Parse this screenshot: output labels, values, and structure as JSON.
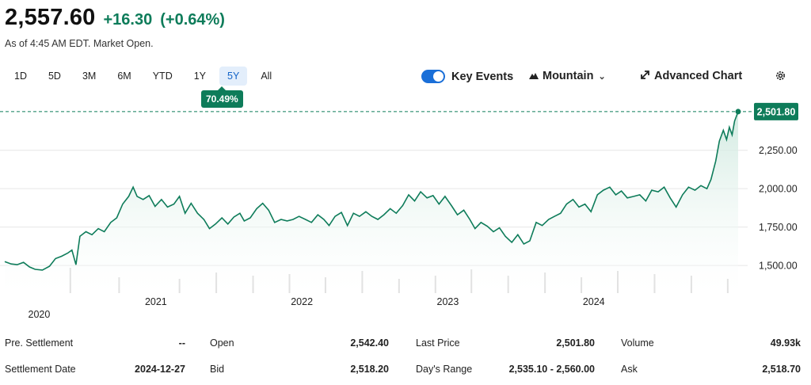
{
  "quote": {
    "price": "2,557.60",
    "change": "+16.30",
    "change_pct": "(+0.64%)",
    "as_of": "As of 4:45 AM EDT. Market Open."
  },
  "ranges": {
    "items": [
      "1D",
      "5D",
      "3M",
      "6M",
      "YTD",
      "1Y",
      "5Y",
      "All"
    ],
    "active": "5Y",
    "period_change": "70.49%"
  },
  "controls": {
    "key_events": "Key Events",
    "mountain": "Mountain",
    "advanced_chart": "Advanced Chart"
  },
  "colors": {
    "line": "#0e7c5a",
    "area_top": "#cfe9df",
    "accent_blue": "#1a6fd8",
    "grid": "#e6e6e6"
  },
  "chart_data": {
    "type": "area",
    "title": "",
    "xlabel": "",
    "ylabel": "",
    "ylim": [
      1320,
      2620
    ],
    "yticks": [
      1500,
      1750,
      2000,
      2250
    ],
    "ytick_labels": [
      "1,500.00",
      "1,750.00",
      "2,000.00",
      "2,250.00"
    ],
    "x_start": "2019-12-20",
    "x_end": "2024-12-27",
    "x_year_labels": [
      {
        "label": "2020",
        "date": "2020-03-15",
        "row": 2
      },
      {
        "label": "2021",
        "date": "2021-01-01",
        "row": 1
      },
      {
        "label": "2022",
        "date": "2022-01-01",
        "row": 1
      },
      {
        "label": "2023",
        "date": "2023-01-01",
        "row": 1
      },
      {
        "label": "2024",
        "date": "2024-01-01",
        "row": 1
      }
    ],
    "last_price": 2501.8,
    "last_price_label": "2,501.80",
    "reference_line": 2501.8,
    "series": [
      {
        "values": [
          {
            "x": "2019-12-20",
            "y": 1525
          },
          {
            "x": "2020-01-05",
            "y": 1510
          },
          {
            "x": "2020-01-20",
            "y": 1505
          },
          {
            "x": "2020-02-05",
            "y": 1520
          },
          {
            "x": "2020-02-20",
            "y": 1490
          },
          {
            "x": "2020-03-05",
            "y": 1475
          },
          {
            "x": "2020-03-23",
            "y": 1470
          },
          {
            "x": "2020-04-10",
            "y": 1495
          },
          {
            "x": "2020-04-25",
            "y": 1545
          },
          {
            "x": "2020-05-10",
            "y": 1560
          },
          {
            "x": "2020-05-25",
            "y": 1580
          },
          {
            "x": "2020-06-05",
            "y": 1600
          },
          {
            "x": "2020-06-15",
            "y": 1505
          },
          {
            "x": "2020-06-25",
            "y": 1690
          },
          {
            "x": "2020-07-10",
            "y": 1720
          },
          {
            "x": "2020-07-25",
            "y": 1700
          },
          {
            "x": "2020-08-10",
            "y": 1740
          },
          {
            "x": "2020-08-25",
            "y": 1720
          },
          {
            "x": "2020-09-10",
            "y": 1780
          },
          {
            "x": "2020-09-25",
            "y": 1810
          },
          {
            "x": "2020-10-10",
            "y": 1900
          },
          {
            "x": "2020-10-25",
            "y": 1950
          },
          {
            "x": "2020-11-05",
            "y": 2010
          },
          {
            "x": "2020-11-15",
            "y": 1950
          },
          {
            "x": "2020-11-30",
            "y": 1930
          },
          {
            "x": "2020-12-15",
            "y": 1955
          },
          {
            "x": "2020-12-30",
            "y": 1885
          },
          {
            "x": "2021-01-15",
            "y": 1930
          },
          {
            "x": "2021-01-30",
            "y": 1880
          },
          {
            "x": "2021-02-15",
            "y": 1900
          },
          {
            "x": "2021-03-01",
            "y": 1950
          },
          {
            "x": "2021-03-15",
            "y": 1840
          },
          {
            "x": "2021-03-30",
            "y": 1905
          },
          {
            "x": "2021-04-15",
            "y": 1840
          },
          {
            "x": "2021-05-01",
            "y": 1800
          },
          {
            "x": "2021-05-15",
            "y": 1740
          },
          {
            "x": "2021-05-30",
            "y": 1770
          },
          {
            "x": "2021-06-15",
            "y": 1810
          },
          {
            "x": "2021-06-30",
            "y": 1770
          },
          {
            "x": "2021-07-15",
            "y": 1815
          },
          {
            "x": "2021-07-30",
            "y": 1840
          },
          {
            "x": "2021-08-10",
            "y": 1790
          },
          {
            "x": "2021-08-25",
            "y": 1810
          },
          {
            "x": "2021-09-10",
            "y": 1870
          },
          {
            "x": "2021-09-25",
            "y": 1905
          },
          {
            "x": "2021-10-10",
            "y": 1860
          },
          {
            "x": "2021-10-25",
            "y": 1780
          },
          {
            "x": "2021-11-10",
            "y": 1800
          },
          {
            "x": "2021-11-25",
            "y": 1790
          },
          {
            "x": "2021-12-10",
            "y": 1800
          },
          {
            "x": "2021-12-25",
            "y": 1820
          },
          {
            "x": "2022-01-10",
            "y": 1800
          },
          {
            "x": "2022-01-25",
            "y": 1780
          },
          {
            "x": "2022-02-10",
            "y": 1830
          },
          {
            "x": "2022-02-25",
            "y": 1800
          },
          {
            "x": "2022-03-10",
            "y": 1760
          },
          {
            "x": "2022-03-25",
            "y": 1820
          },
          {
            "x": "2022-04-10",
            "y": 1845
          },
          {
            "x": "2022-04-25",
            "y": 1760
          },
          {
            "x": "2022-05-10",
            "y": 1840
          },
          {
            "x": "2022-05-25",
            "y": 1820
          },
          {
            "x": "2022-06-10",
            "y": 1850
          },
          {
            "x": "2022-06-25",
            "y": 1820
          },
          {
            "x": "2022-07-10",
            "y": 1800
          },
          {
            "x": "2022-07-25",
            "y": 1830
          },
          {
            "x": "2022-08-10",
            "y": 1870
          },
          {
            "x": "2022-08-25",
            "y": 1840
          },
          {
            "x": "2022-09-10",
            "y": 1890
          },
          {
            "x": "2022-09-25",
            "y": 1960
          },
          {
            "x": "2022-10-10",
            "y": 1920
          },
          {
            "x": "2022-10-25",
            "y": 1980
          },
          {
            "x": "2022-11-10",
            "y": 1940
          },
          {
            "x": "2022-11-25",
            "y": 1955
          },
          {
            "x": "2022-12-10",
            "y": 1900
          },
          {
            "x": "2022-12-25",
            "y": 1950
          },
          {
            "x": "2023-01-10",
            "y": 1890
          },
          {
            "x": "2023-01-25",
            "y": 1830
          },
          {
            "x": "2023-02-10",
            "y": 1860
          },
          {
            "x": "2023-02-25",
            "y": 1800
          },
          {
            "x": "2023-03-10",
            "y": 1740
          },
          {
            "x": "2023-03-25",
            "y": 1780
          },
          {
            "x": "2023-04-10",
            "y": 1755
          },
          {
            "x": "2023-04-25",
            "y": 1720
          },
          {
            "x": "2023-05-10",
            "y": 1745
          },
          {
            "x": "2023-05-25",
            "y": 1690
          },
          {
            "x": "2023-06-10",
            "y": 1650
          },
          {
            "x": "2023-06-25",
            "y": 1700
          },
          {
            "x": "2023-07-10",
            "y": 1640
          },
          {
            "x": "2023-07-25",
            "y": 1660
          },
          {
            "x": "2023-08-10",
            "y": 1780
          },
          {
            "x": "2023-08-25",
            "y": 1760
          },
          {
            "x": "2023-09-10",
            "y": 1800
          },
          {
            "x": "2023-09-25",
            "y": 1820
          },
          {
            "x": "2023-10-10",
            "y": 1840
          },
          {
            "x": "2023-10-25",
            "y": 1900
          },
          {
            "x": "2023-11-10",
            "y": 1930
          },
          {
            "x": "2023-11-25",
            "y": 1880
          },
          {
            "x": "2023-12-10",
            "y": 1900
          },
          {
            "x": "2023-12-25",
            "y": 1850
          },
          {
            "x": "2024-01-10",
            "y": 1960
          },
          {
            "x": "2024-01-25",
            "y": 1990
          },
          {
            "x": "2024-02-10",
            "y": 2010
          },
          {
            "x": "2024-02-25",
            "y": 1960
          },
          {
            "x": "2024-03-10",
            "y": 1985
          },
          {
            "x": "2024-03-25",
            "y": 1940
          },
          {
            "x": "2024-04-10",
            "y": 1950
          },
          {
            "x": "2024-04-25",
            "y": 1960
          },
          {
            "x": "2024-05-10",
            "y": 1920
          },
          {
            "x": "2024-05-25",
            "y": 1990
          },
          {
            "x": "2024-06-10",
            "y": 1980
          },
          {
            "x": "2024-06-25",
            "y": 2010
          },
          {
            "x": "2024-07-10",
            "y": 1940
          },
          {
            "x": "2024-07-25",
            "y": 1880
          },
          {
            "x": "2024-08-10",
            "y": 1960
          },
          {
            "x": "2024-08-25",
            "y": 2010
          },
          {
            "x": "2024-09-10",
            "y": 1990
          },
          {
            "x": "2024-09-25",
            "y": 2020
          },
          {
            "x": "2024-10-10",
            "y": 2000
          },
          {
            "x": "2024-10-20",
            "y": 2060
          },
          {
            "x": "2024-11-01",
            "y": 2180
          },
          {
            "x": "2024-11-10",
            "y": 2310
          },
          {
            "x": "2024-11-20",
            "y": 2380
          },
          {
            "x": "2024-11-28",
            "y": 2320
          },
          {
            "x": "2024-12-05",
            "y": 2400
          },
          {
            "x": "2024-12-12",
            "y": 2350
          },
          {
            "x": "2024-12-18",
            "y": 2440
          },
          {
            "x": "2024-12-27",
            "y": 2501.8
          }
        ]
      }
    ]
  },
  "stats": {
    "col1": [
      {
        "label": "Pre. Settlement",
        "value": "--"
      },
      {
        "label": "Settlement Date",
        "value": "2024-12-27"
      }
    ],
    "col2": [
      {
        "label": "Open",
        "value": "2,542.40"
      },
      {
        "label": "Bid",
        "value": "2,518.20"
      }
    ],
    "col3": [
      {
        "label": "Last Price",
        "value": "2,501.80"
      },
      {
        "label": "Day's Range",
        "value": "2,535.10 - 2,560.00"
      }
    ],
    "col4": [
      {
        "label": "Volume",
        "value": "49.93k"
      },
      {
        "label": "Ask",
        "value": "2,518.70"
      }
    ]
  }
}
